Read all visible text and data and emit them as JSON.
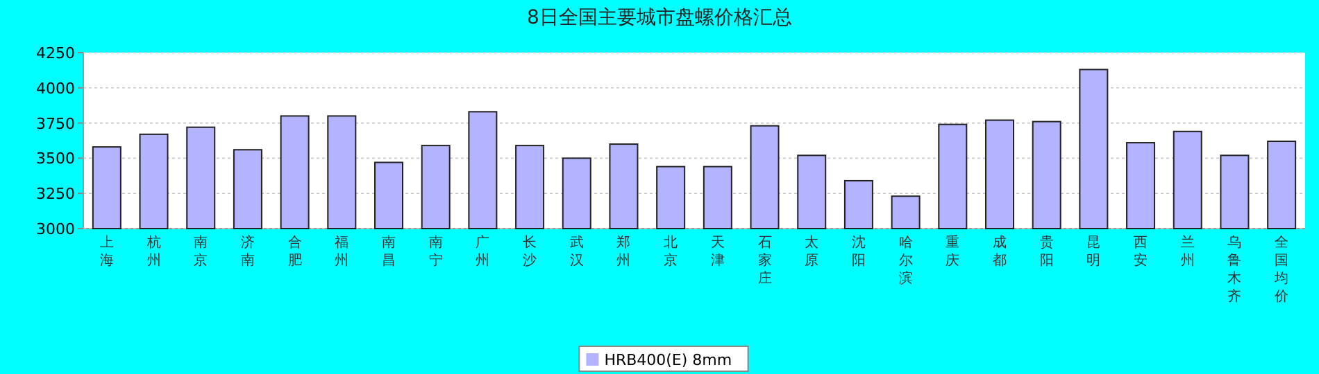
{
  "chart_data": {
    "type": "bar",
    "title": "8日全国主要城市盘螺价格汇总",
    "categories": [
      "上海",
      "杭州",
      "南京",
      "济南",
      "合肥",
      "福州",
      "南昌",
      "南宁",
      "广州",
      "长沙",
      "武汉",
      "郑州",
      "北京",
      "天津",
      "石家庄",
      "太原",
      "沈阳",
      "哈尔滨",
      "重庆",
      "成都",
      "贵阳",
      "昆明",
      "西安",
      "兰州",
      "乌鲁木齐",
      "全国均价"
    ],
    "series": [
      {
        "name": "HRB400(E) 8mm",
        "color": "#b3b3ff",
        "values": [
          3580,
          3670,
          3720,
          3560,
          3800,
          3800,
          3470,
          3590,
          3830,
          3590,
          3500,
          3600,
          3440,
          3440,
          3730,
          3520,
          3340,
          3230,
          3740,
          3770,
          3760,
          4130,
          3610,
          3690,
          3520,
          3620
        ]
      }
    ],
    "ylim": [
      3000,
      4250
    ],
    "yticks": [
      3000,
      3250,
      3500,
      3750,
      4000,
      4250
    ],
    "grid": "y",
    "legend": "bottom"
  }
}
